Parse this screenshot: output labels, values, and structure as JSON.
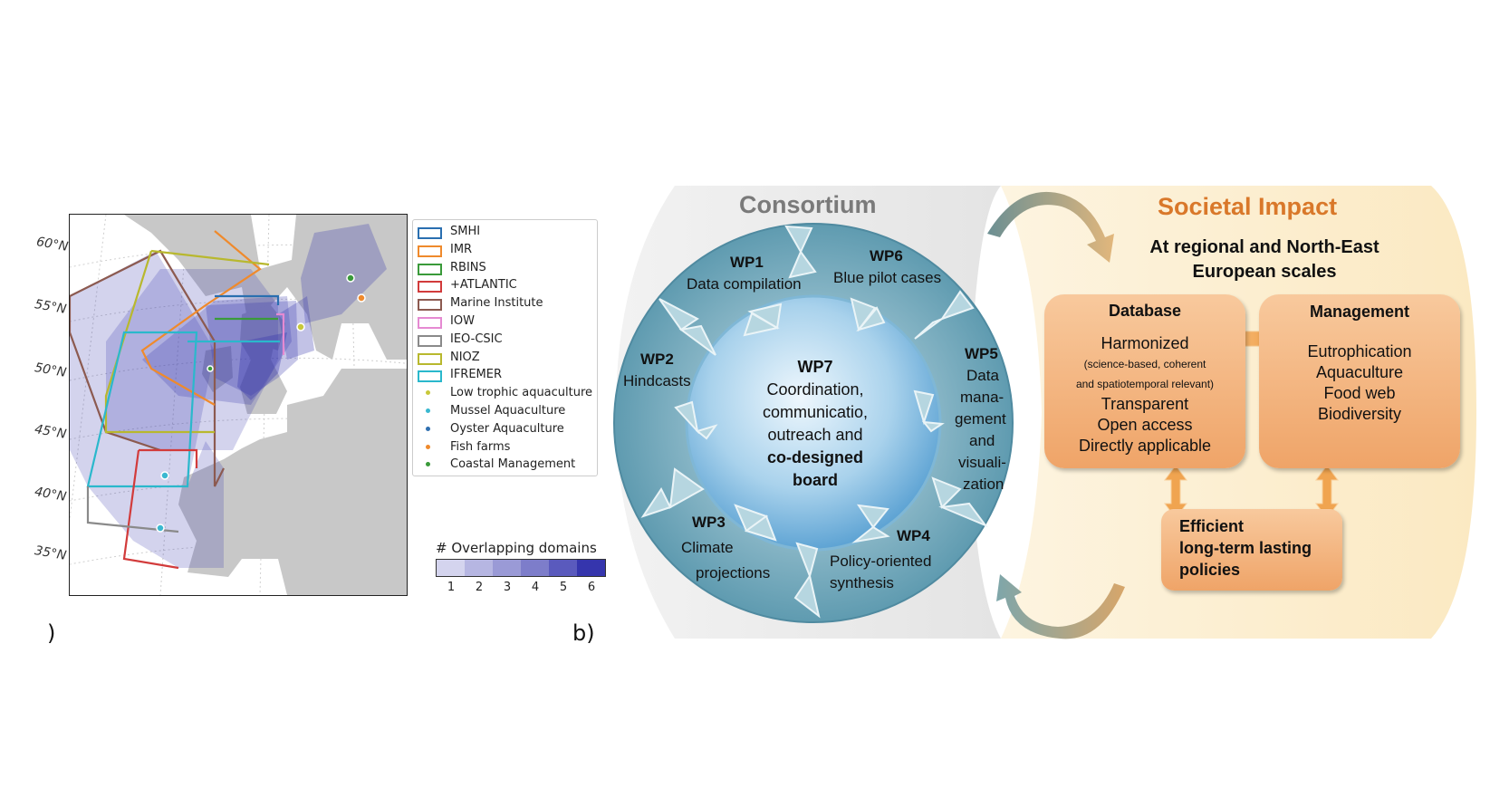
{
  "map": {
    "lat_labels": [
      "60°N",
      "55°N",
      "50°N",
      "45°N",
      "40°N",
      "35°N"
    ],
    "legend": [
      {
        "label": "SMHI",
        "kind": "line",
        "color": "#2a6fb0"
      },
      {
        "label": "IMR",
        "kind": "line",
        "color": "#ef8a2c"
      },
      {
        "label": "RBINS",
        "kind": "line",
        "color": "#3a9a3a"
      },
      {
        "label": "+ATLANTIC",
        "kind": "line",
        "color": "#d23b3b"
      },
      {
        "label": "Marine Institute",
        "kind": "line",
        "color": "#8c5a50"
      },
      {
        "label": "IOW",
        "kind": "line",
        "color": "#e58ad2"
      },
      {
        "label": "IEO-CSIC",
        "kind": "line",
        "color": "#8a8a8a"
      },
      {
        "label": "NIOZ",
        "kind": "line",
        "color": "#b8b82e"
      },
      {
        "label": "IFREMER",
        "kind": "line",
        "color": "#2ab8cc"
      },
      {
        "label": "Low trophic aquaculture",
        "kind": "dot",
        "color": "#c8c83a"
      },
      {
        "label": "Mussel Aquaculture",
        "kind": "dot",
        "color": "#3ab8d0"
      },
      {
        "label": "Oyster Aquaculture",
        "kind": "dot",
        "color": "#2f6fb0"
      },
      {
        "label": "Fish farms",
        "kind": "dot",
        "color": "#ef8a2c"
      },
      {
        "label": "Coastal Management",
        "kind": "dot",
        "color": "#3a9a3a"
      }
    ],
    "colorbar": {
      "title": "# Overlapping domains",
      "ticks": [
        "1",
        "2",
        "3",
        "4",
        "5",
        "6"
      ],
      "colors": [
        "#d4d4ee",
        "#b6b6e2",
        "#9a9ad6",
        "#7d7dca",
        "#5a5abd",
        "#3535ad"
      ]
    },
    "panel_letter_a": ")",
    "panel_letter_b": "b)"
  },
  "diagram": {
    "consortium_title": "Consortium",
    "wps": [
      {
        "id": "WP1",
        "lines": [
          "Data compilation"
        ]
      },
      {
        "id": "WP6",
        "lines": [
          "Blue pilot cases"
        ]
      },
      {
        "id": "WP2",
        "lines": [
          "Hindcasts"
        ]
      },
      {
        "id": "WP5",
        "lines": [
          "Data",
          "mana-",
          "gement",
          "and",
          "visuali-",
          "zation"
        ]
      },
      {
        "id": "WP3",
        "lines": [
          "Climate",
          "projections"
        ]
      },
      {
        "id": "WP4",
        "lines": [
          "Policy-oriented",
          "synthesis"
        ]
      }
    ],
    "center": {
      "title": "WP7",
      "lines": [
        "Coordination,",
        "communicatio,",
        "outreach and"
      ],
      "bold_lines": [
        "co-designed",
        "board"
      ]
    },
    "impact": {
      "title": "Societal Impact",
      "subtitle": "At regional and North-East European scales",
      "database": {
        "title": "Database",
        "line1": "Harmonized",
        "small1": "(science-based, coherent",
        "small2": "and spatiotemporal relevant)",
        "items": [
          "Transparent",
          "Open access",
          "Directly applicable"
        ]
      },
      "management": {
        "title": "Management",
        "items": [
          "Eutrophication",
          "Aquaculture",
          "Food web",
          "Biodiversity"
        ]
      },
      "policies": [
        "Efficient",
        "long-term lasting",
        "policies"
      ]
    }
  }
}
